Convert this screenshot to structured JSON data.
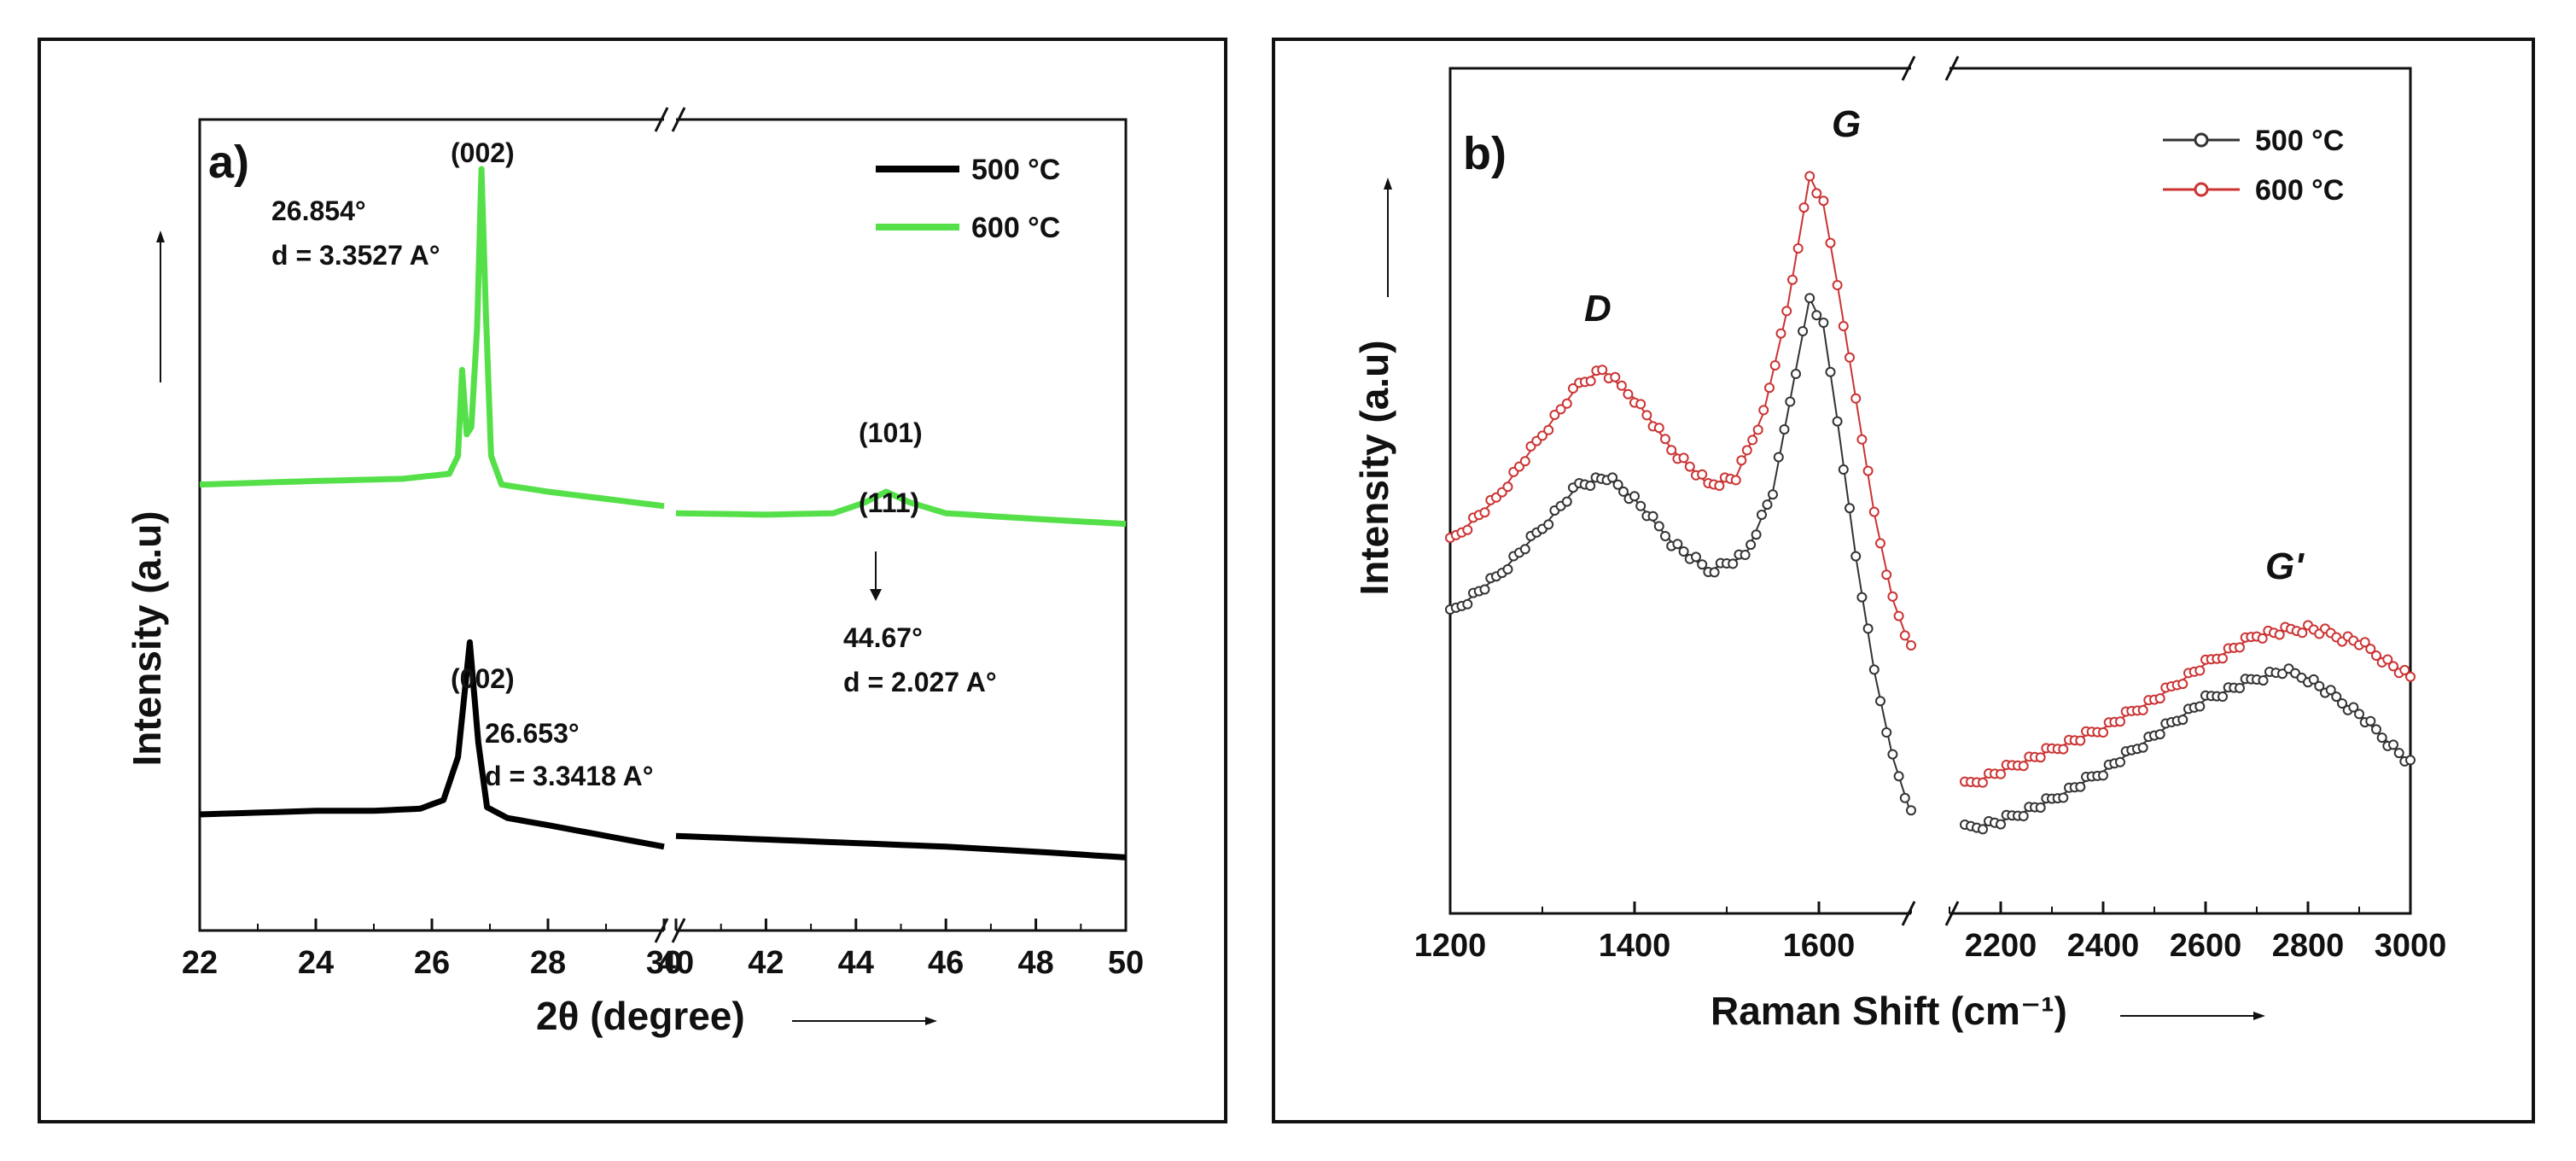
{
  "chart_data": [
    {
      "type": "line",
      "panel_label": "a)",
      "xlabel": "2θ (degree)",
      "ylabel": "Intensity (a.u)",
      "x_ticks": [
        "22",
        "24",
        "26",
        "28",
        "30",
        "40",
        "42",
        "44",
        "46",
        "48",
        "50"
      ],
      "x_segments": [
        [
          22,
          30
        ],
        [
          40,
          50
        ]
      ],
      "axis_break": "//",
      "legend": [
        "500 °C",
        "600 °C"
      ],
      "legend_position": "top-right",
      "series": [
        {
          "name": "500 °C",
          "color": "#000000",
          "points": [
            [
              22,
              0.1
            ],
            [
              24,
              0.105
            ],
            [
              25,
              0.105
            ],
            [
              25.8,
              0.108
            ],
            [
              26.2,
              0.12
            ],
            [
              26.45,
              0.18
            ],
            [
              26.653,
              0.34
            ],
            [
              26.8,
              0.2
            ],
            [
              26.95,
              0.11
            ],
            [
              27.3,
              0.095
            ],
            [
              28,
              0.085
            ],
            [
              29,
              0.07
            ],
            [
              30,
              0.055
            ],
            [
              40,
              0.07
            ],
            [
              42,
              0.065
            ],
            [
              44,
              0.06
            ],
            [
              46,
              0.055
            ],
            [
              48,
              0.048
            ],
            [
              50,
              0.04
            ]
          ]
        },
        {
          "name": "600 °C",
          "color": "#55e04a",
          "points": [
            [
              22,
              0.56
            ],
            [
              24,
              0.565
            ],
            [
              25.5,
              0.568
            ],
            [
              26.3,
              0.575
            ],
            [
              26.45,
              0.6
            ],
            [
              26.52,
              0.72
            ],
            [
              26.6,
              0.63
            ],
            [
              26.68,
              0.64
            ],
            [
              26.78,
              0.78
            ],
            [
              26.854,
              1.0
            ],
            [
              26.93,
              0.8
            ],
            [
              27.02,
              0.6
            ],
            [
              27.2,
              0.56
            ],
            [
              28,
              0.55
            ],
            [
              29,
              0.54
            ],
            [
              30,
              0.53
            ],
            [
              40,
              0.52
            ],
            [
              42,
              0.518
            ],
            [
              43.5,
              0.52
            ],
            [
              44.2,
              0.535
            ],
            [
              44.67,
              0.55
            ],
            [
              45.2,
              0.535
            ],
            [
              46,
              0.52
            ],
            [
              48,
              0.512
            ],
            [
              50,
              0.505
            ]
          ]
        }
      ],
      "annotations": {
        "peak_002_top": "(002)",
        "angle_top": "26.854°",
        "d_top": "d = 3.3527 A°",
        "peak_101": "(101)",
        "peak_111": "(111)",
        "angle_44": "44.67°",
        "d_44": "d = 2.027 A°",
        "peak_002_bottom": "(002)",
        "angle_bottom": "26.653°",
        "d_bottom": "d = 3.3418 A°"
      }
    },
    {
      "type": "scatter",
      "panel_label": "b)",
      "xlabel": "Raman Shift (cm⁻¹)",
      "ylabel": "Intensity (a.u)",
      "x_ticks": [
        "1200",
        "1400",
        "1600",
        "2200",
        "2400",
        "2600",
        "2800",
        "3000"
      ],
      "x_segments": [
        [
          1200,
          1700
        ],
        [
          2100,
          3000
        ]
      ],
      "axis_break": "//",
      "legend": [
        "500 °C",
        "600 °C"
      ],
      "legend_position": "top-right",
      "peak_labels": {
        "D": "D",
        "G": "G",
        "G2": "G'"
      },
      "series": [
        {
          "name": "500 °C",
          "color": "#333333",
          "points": [
            [
              1200,
              0.38
            ],
            [
              1250,
              0.43
            ],
            [
              1300,
              0.5
            ],
            [
              1340,
              0.56
            ],
            [
              1370,
              0.57
            ],
            [
              1400,
              0.54
            ],
            [
              1440,
              0.48
            ],
            [
              1480,
              0.44
            ],
            [
              1520,
              0.46
            ],
            [
              1550,
              0.55
            ],
            [
              1575,
              0.72
            ],
            [
              1590,
              0.82
            ],
            [
              1605,
              0.78
            ],
            [
              1620,
              0.65
            ],
            [
              1640,
              0.46
            ],
            [
              1660,
              0.3
            ],
            [
              1680,
              0.18
            ],
            [
              1700,
              0.1
            ],
            [
              2130,
              0.08
            ],
            [
              2200,
              0.09
            ],
            [
              2300,
              0.12
            ],
            [
              2400,
              0.16
            ],
            [
              2500,
              0.21
            ],
            [
              2600,
              0.26
            ],
            [
              2700,
              0.29
            ],
            [
              2750,
              0.3
            ],
            [
              2800,
              0.29
            ],
            [
              2900,
              0.24
            ],
            [
              3000,
              0.17
            ]
          ]
        },
        {
          "name": "600 °C",
          "color": "#cc3333",
          "points": [
            [
              1200,
              0.48
            ],
            [
              1250,
              0.54
            ],
            [
              1300,
              0.63
            ],
            [
              1340,
              0.7
            ],
            [
              1365,
              0.72
            ],
            [
              1400,
              0.68
            ],
            [
              1440,
              0.61
            ],
            [
              1480,
              0.56
            ],
            [
              1510,
              0.57
            ],
            [
              1540,
              0.66
            ],
            [
              1565,
              0.8
            ],
            [
              1590,
              0.99
            ],
            [
              1605,
              0.95
            ],
            [
              1620,
              0.84
            ],
            [
              1640,
              0.68
            ],
            [
              1660,
              0.52
            ],
            [
              1680,
              0.4
            ],
            [
              1700,
              0.33
            ],
            [
              2130,
              0.14
            ],
            [
              2200,
              0.16
            ],
            [
              2300,
              0.19
            ],
            [
              2400,
              0.22
            ],
            [
              2500,
              0.26
            ],
            [
              2600,
              0.31
            ],
            [
              2700,
              0.35
            ],
            [
              2800,
              0.36
            ],
            [
              2900,
              0.34
            ],
            [
              3000,
              0.29
            ]
          ]
        }
      ]
    }
  ]
}
